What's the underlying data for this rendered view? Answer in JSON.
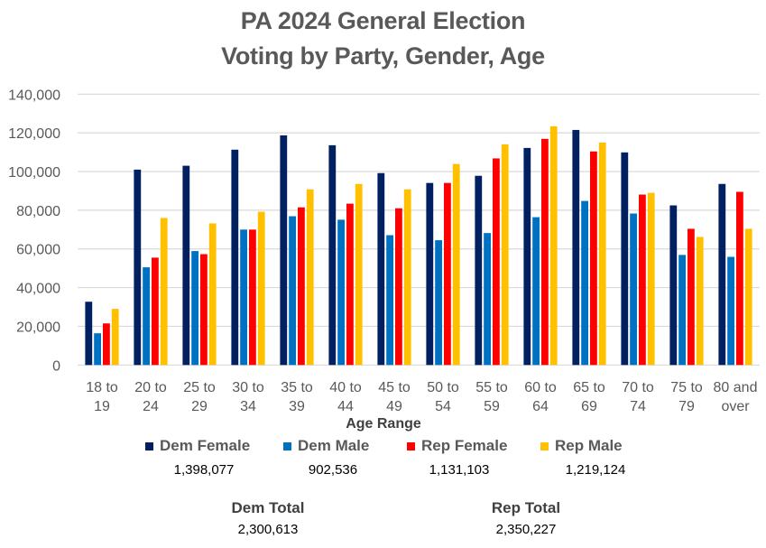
{
  "chart_data": {
    "type": "bar",
    "title": "PA 2024 General Election",
    "subtitle": "Voting by Party, Gender, Age",
    "xlabel": "Age Range",
    "ylabel": "",
    "ylim": [
      0,
      140000
    ],
    "yticks": [
      0,
      20000,
      40000,
      60000,
      80000,
      100000,
      120000,
      140000
    ],
    "ytick_labels": [
      "0",
      "20,000",
      "40,000",
      "60,000",
      "80,000",
      "100,000",
      "120,000",
      "140,000"
    ],
    "grid": true,
    "legend_position": "bottom",
    "categories": [
      [
        "18 to",
        "19"
      ],
      [
        "20 to",
        "24"
      ],
      [
        "25 to",
        "29"
      ],
      [
        "30 to",
        "34"
      ],
      [
        "35 to",
        "39"
      ],
      [
        "40 to",
        "44"
      ],
      [
        "45 to",
        "49"
      ],
      [
        "50 to",
        "54"
      ],
      [
        "55 to",
        "59"
      ],
      [
        "60 to",
        "64"
      ],
      [
        "65 to",
        "69"
      ],
      [
        "70 to",
        "74"
      ],
      [
        "75 to",
        "79"
      ],
      [
        "80 and",
        "over"
      ]
    ],
    "series": [
      {
        "name": "Dem Female",
        "color": "#002060",
        "total": "1,398,077",
        "values": [
          32700,
          101000,
          103000,
          111300,
          118700,
          113600,
          99200,
          94100,
          97800,
          112200,
          121500,
          109900,
          82500,
          93600
        ]
      },
      {
        "name": "Dem Male",
        "color": "#0070C0",
        "total": "902,536",
        "values": [
          16400,
          50500,
          58900,
          70000,
          76900,
          75100,
          67100,
          64500,
          68200,
          76400,
          84800,
          78300,
          56900,
          55900
        ]
      },
      {
        "name": "Rep Female",
        "color": "#FF0000",
        "total": "1,131,103",
        "values": [
          21500,
          55500,
          57300,
          70000,
          81500,
          83400,
          81000,
          94100,
          106800,
          116900,
          110400,
          88100,
          70400,
          89500
        ]
      },
      {
        "name": "Rep Male",
        "color": "#FFC000",
        "total": "1,219,124",
        "values": [
          29000,
          76000,
          73200,
          79200,
          90800,
          93600,
          90800,
          103900,
          114100,
          123400,
          115000,
          89000,
          66200,
          70400
        ]
      }
    ]
  },
  "totals": {
    "dem_label": "Dem Total",
    "dem_value": "2,300,613",
    "rep_label": "Rep Total",
    "rep_value": "2,350,227"
  }
}
